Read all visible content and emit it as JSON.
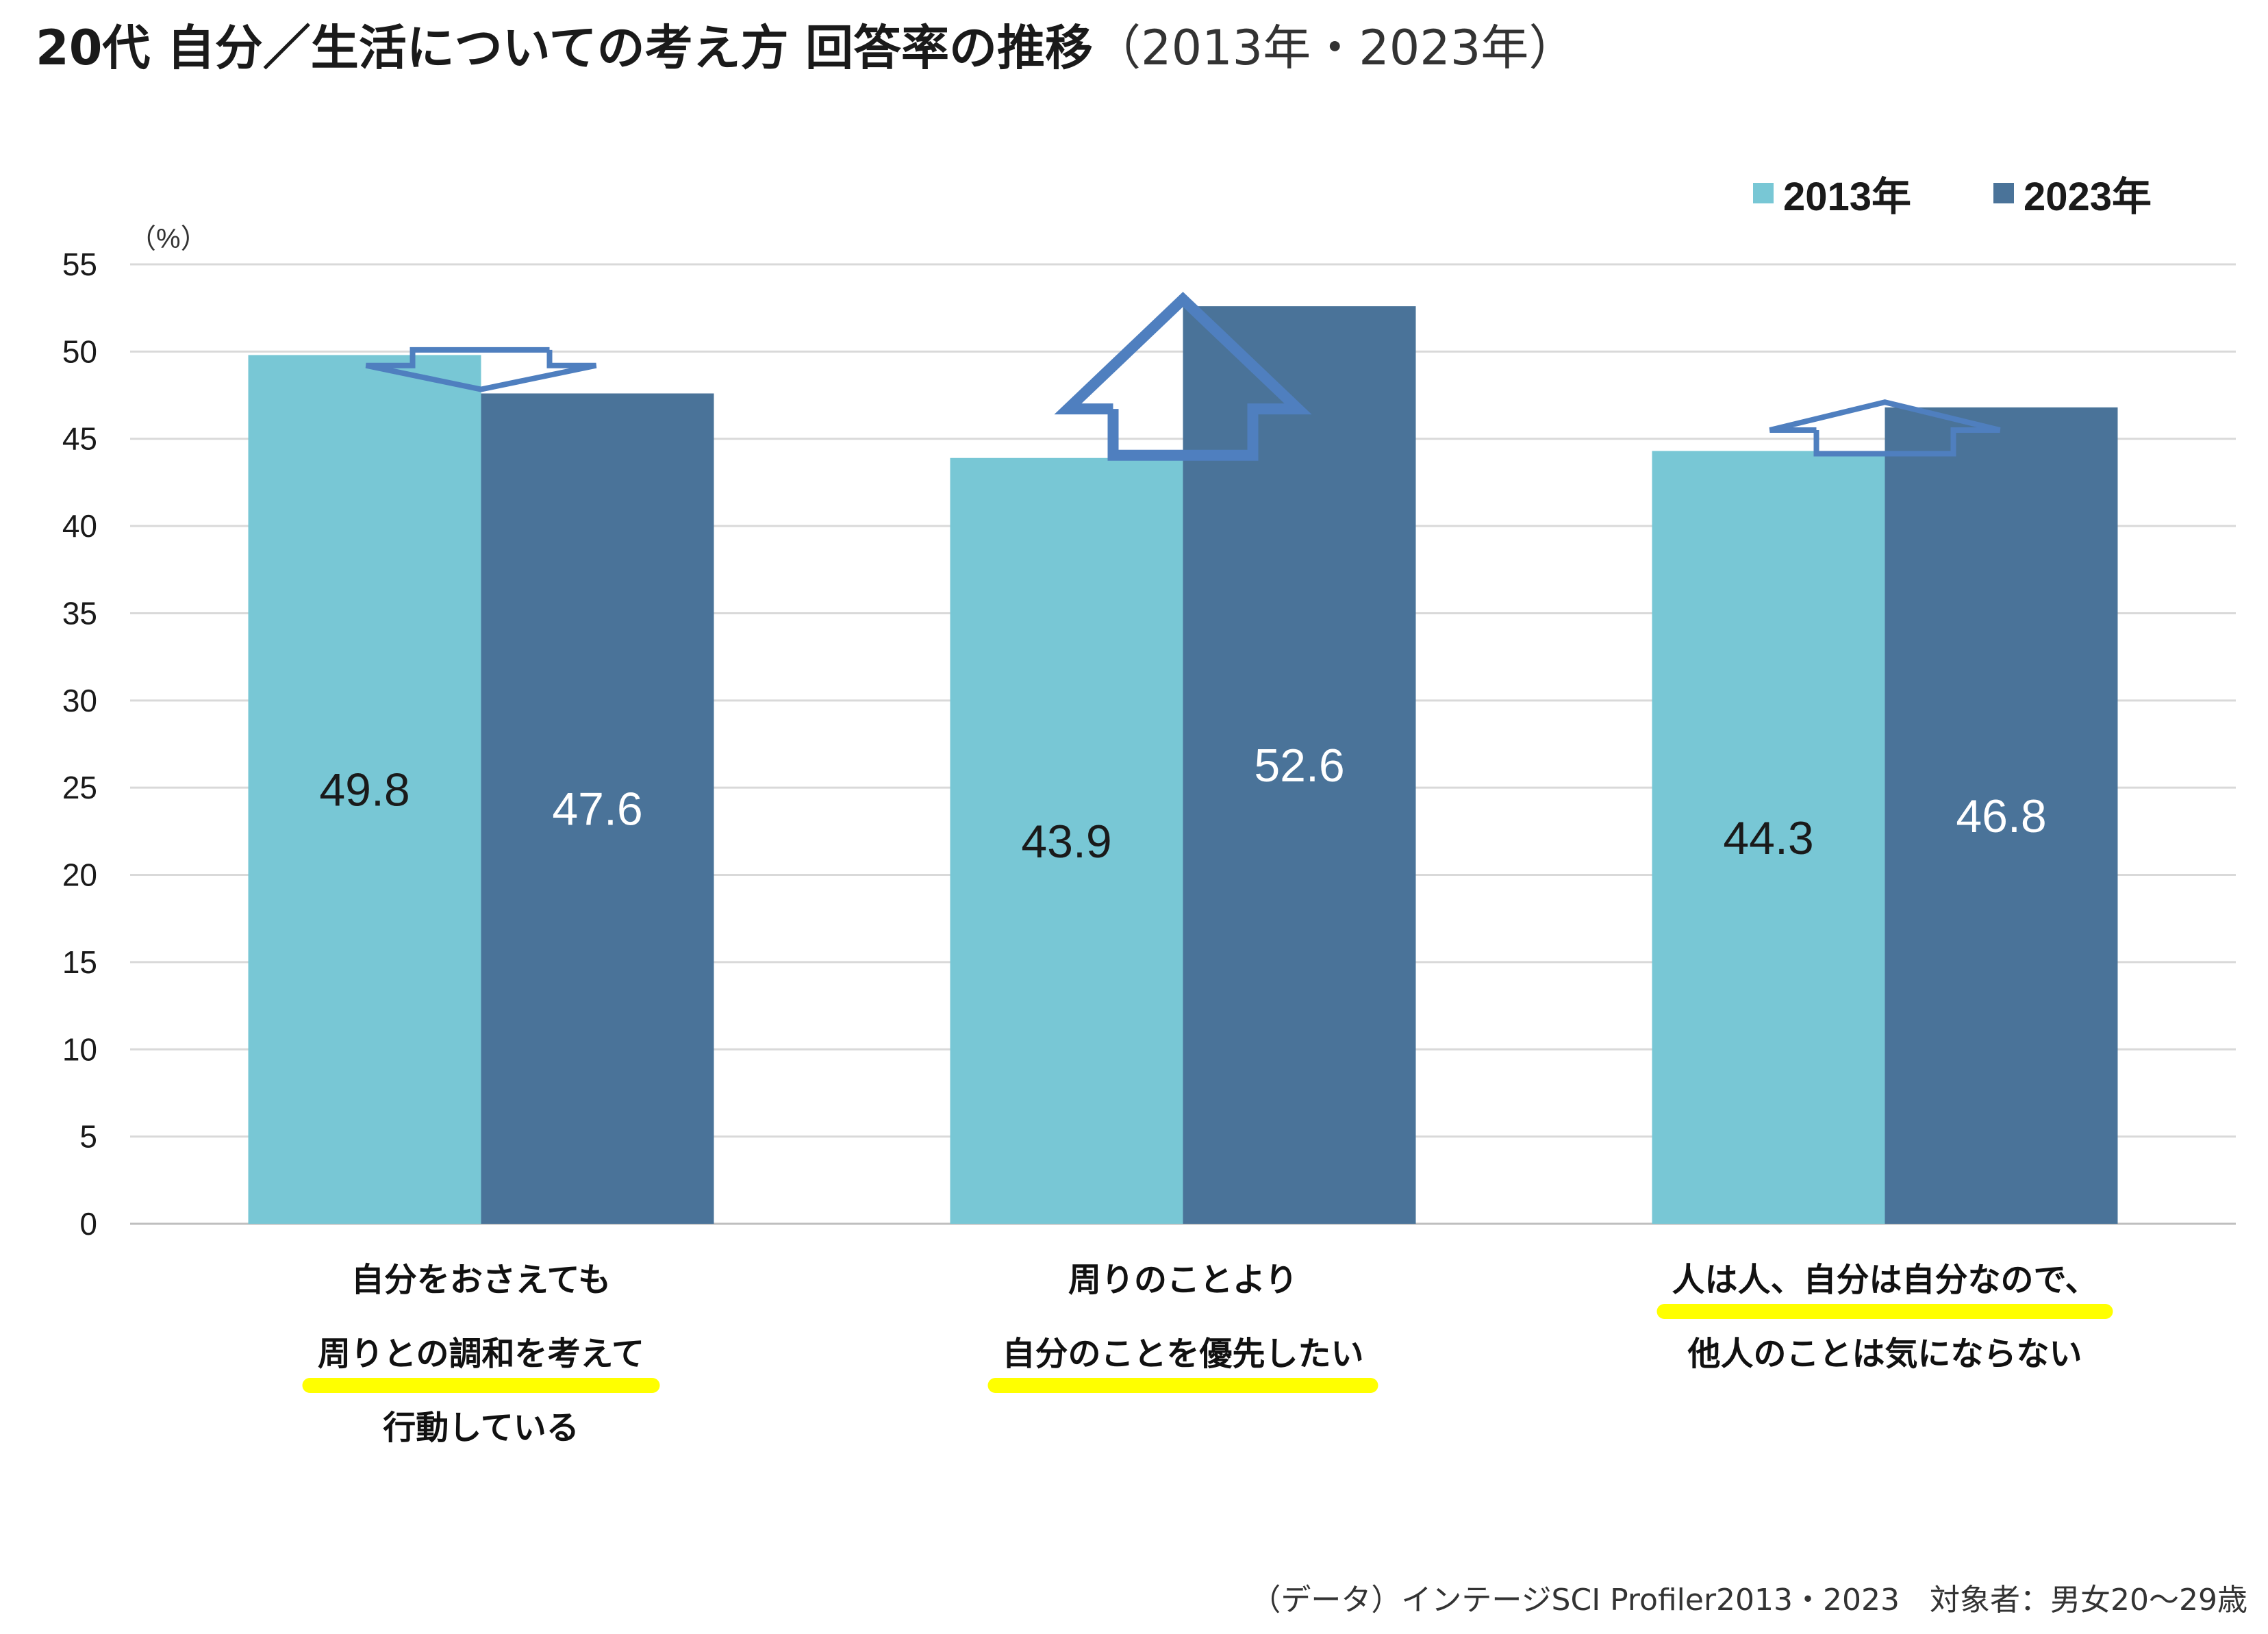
{
  "title": {
    "main": "20代 自分／生活についての考え方 回答率の推移",
    "sub": "（2013年・2023年）"
  },
  "legend": [
    {
      "label": "2013年",
      "color": "#78c7d5"
    },
    {
      "label": "2023年",
      "color": "#4a7399"
    }
  ],
  "footer": "（データ）インテージSCI Profiler2013・2023　対象者：男女20〜29歳",
  "chart_data": {
    "type": "bar",
    "unit_label": "（%）",
    "ylim": [
      0,
      55
    ],
    "yticks": [
      0,
      5,
      10,
      15,
      20,
      25,
      30,
      35,
      40,
      45,
      50,
      55
    ],
    "grid": true,
    "legend_position": "top-right",
    "categories": [
      [
        "自分をおさえても",
        "周りとの調和を考えて",
        "行動している"
      ],
      [
        "周りのことより",
        "自分のことを優先したい"
      ],
      [
        "人は人、自分は自分なので、",
        "他人のことは気にならない"
      ]
    ],
    "highlight_lines": [
      1,
      1,
      0
    ],
    "arrows": [
      "down",
      "up",
      "up"
    ],
    "series": [
      {
        "name": "2013年",
        "color": "#78c7d5",
        "label_color": "#1a1a1a",
        "values": [
          49.8,
          43.9,
          44.3
        ]
      },
      {
        "name": "2023年",
        "color": "#4a7399",
        "label_color": "#ffffff",
        "values": [
          47.6,
          52.6,
          46.8
        ]
      }
    ],
    "annotation_colors": {
      "arrow": "#4f7fbf",
      "highlight": "#ffff00"
    }
  }
}
